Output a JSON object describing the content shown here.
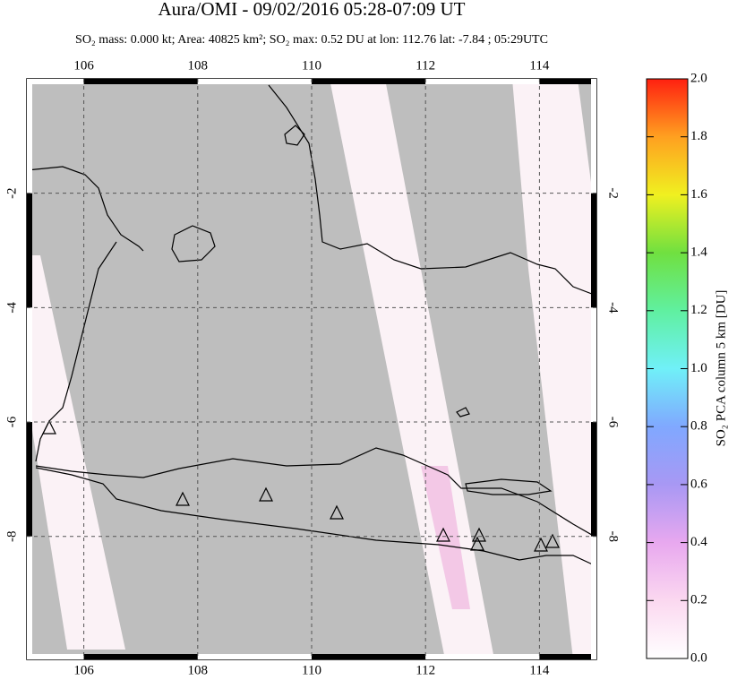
{
  "header": {
    "title": "Aura/OMI - 09/02/2016 05:28-07:09 UT",
    "subtitle": "SO₂ mass: 0.000 kt; Area: 40825 km²; SO₂ max: 0.52 DU at lon: 112.76 lat: -7.84 ; 05:29UTC"
  },
  "map": {
    "lon_range": [
      105,
      115
    ],
    "lat_range": [
      -10.15,
      0
    ],
    "lon_ticks": [
      106,
      108,
      110,
      112,
      114
    ],
    "lat_ticks": [
      -2,
      -4,
      -6,
      -8
    ]
  },
  "colorbar": {
    "label": "SO₂ PCA column 5 km [DU]",
    "range": [
      0,
      2
    ],
    "ticks": [
      {
        "value": 0,
        "label": "0.0"
      },
      {
        "value": 0.2,
        "label": "0.2"
      },
      {
        "value": 0.4,
        "label": "0.4"
      },
      {
        "value": 0.6,
        "label": "0.6"
      },
      {
        "value": 0.8,
        "label": "0.8"
      },
      {
        "value": 1,
        "label": "1.0"
      },
      {
        "value": 1.2,
        "label": "1.2"
      },
      {
        "value": 1.4,
        "label": "1.4"
      },
      {
        "value": 1.6,
        "label": "1.6"
      },
      {
        "value": 1.8,
        "label": "1.8"
      },
      {
        "value": 2,
        "label": "2.0"
      }
    ]
  }
}
